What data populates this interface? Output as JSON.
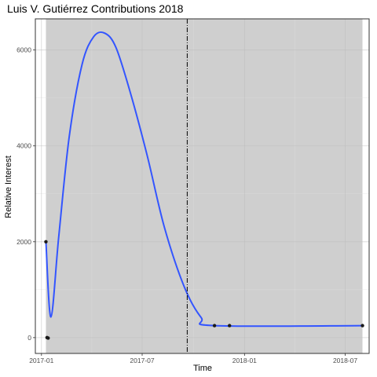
{
  "chart_data": {
    "type": "line",
    "title": "Luis V. Gutiérrez Contributions 2018",
    "xlabel": "Time",
    "ylabel": "Relative Interest",
    "x_ticks": [
      "2017-01",
      "2017-07",
      "2018-01",
      "2018-07"
    ],
    "y_ticks": [
      "0",
      "2000",
      "4000",
      "6000"
    ],
    "xlim": [
      "2016-12-21",
      "2018-08-13"
    ],
    "ylim": [
      -330,
      6650
    ],
    "grid": true,
    "shaded_range": [
      "2017-01-09",
      "2018-08-01"
    ],
    "vline": "2017-09-20",
    "points": [
      {
        "x": "2017-01-09",
        "y": 2000
      },
      {
        "x": "2017-01-11",
        "y": 0
      },
      {
        "x": "2017-01-13",
        "y": -10
      },
      {
        "x": "2017-11-08",
        "y": 250
      },
      {
        "x": "2017-12-05",
        "y": 250
      },
      {
        "x": "2018-08-01",
        "y": 250
      }
    ],
    "smooth_line": [
      {
        "x": "2017-01-09",
        "y": 2000
      },
      {
        "x": "2017-01-18",
        "y": 430
      },
      {
        "x": "2017-02-01",
        "y": 2100
      },
      {
        "x": "2017-02-20",
        "y": 4200
      },
      {
        "x": "2017-03-15",
        "y": 5700
      },
      {
        "x": "2017-04-05",
        "y": 6280
      },
      {
        "x": "2017-04-25",
        "y": 6350
      },
      {
        "x": "2017-05-15",
        "y": 6050
      },
      {
        "x": "2017-06-10",
        "y": 5100
      },
      {
        "x": "2017-07-10",
        "y": 3800
      },
      {
        "x": "2017-08-10",
        "y": 2300
      },
      {
        "x": "2017-09-15",
        "y": 1050
      },
      {
        "x": "2017-10-15",
        "y": 420
      },
      {
        "x": "2017-11-08",
        "y": 250
      },
      {
        "x": "2018-08-01",
        "y": 250
      }
    ],
    "colors": {
      "shade": "#cfcfcf",
      "line": "#3355ff",
      "point": "#1a1a1a",
      "grid": "#ebebeb",
      "vline": "#000000"
    }
  }
}
